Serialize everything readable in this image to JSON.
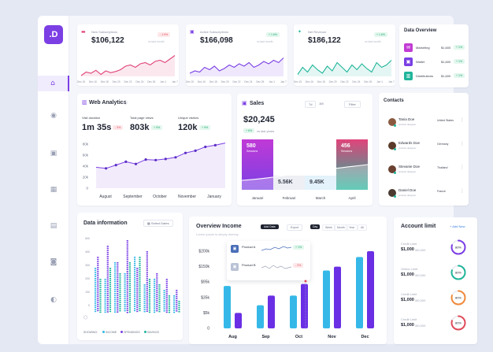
{
  "app": {
    "logo": ".D",
    "nav": [
      "home-icon",
      "play-icon",
      "image-icon",
      "grid-icon",
      "store-icon",
      "user-icon",
      "contrast-icon"
    ]
  },
  "stats": [
    {
      "title": "New Subscriptions",
      "value": "$106,122",
      "badge": "- 1.9%",
      "trend": "down",
      "note": "vs last month",
      "color": "#e0447a",
      "ticks": [
        "Dec 15",
        "Dec 16",
        "Dec 18",
        "Dec 20",
        "Dec 22",
        "Dec 24",
        "Dec 26",
        "Jan 1",
        "Jan 7"
      ],
      "series": [
        44,
        38,
        40,
        35,
        42,
        36,
        39,
        37,
        34,
        28,
        26,
        30,
        24,
        22,
        26,
        20,
        18,
        22,
        16,
        10
      ]
    },
    {
      "title": "Active Subscriptions",
      "value": "$166,098",
      "badge": "+ 1.6%",
      "trend": "up",
      "note": "vs last month",
      "color": "#7b3fe4",
      "ticks": [
        "Dec 15",
        "Dec 16",
        "Dec 18",
        "Dec 20",
        "Dec 22",
        "Dec 24",
        "Dec 26",
        "Jan 1",
        "Jan 7"
      ],
      "series": [
        40,
        36,
        38,
        30,
        34,
        28,
        36,
        32,
        26,
        30,
        24,
        28,
        22,
        30,
        26,
        20,
        24,
        18,
        22,
        14
      ]
    },
    {
      "title": "Net Revenue",
      "value": "$186,122",
      "badge": "+ 1.6%",
      "trend": "up",
      "note": "vs last month",
      "color": "#1fb59a",
      "ticks": [
        "Dec 15",
        "Dec 16",
        "Dec 18",
        "Dec 20",
        "Dec 22",
        "Dec 24",
        "Dec 26",
        "Jan 1",
        "Jan 7"
      ],
      "series": [
        42,
        30,
        38,
        26,
        34,
        40,
        28,
        36,
        22,
        30,
        38,
        26,
        34,
        24,
        32,
        38,
        22,
        30,
        26,
        18
      ]
    }
  ],
  "overview": {
    "title": "Data Overview",
    "items": [
      {
        "label": "Marketing",
        "value": "$1,600",
        "badge": "+ 1%",
        "color": "#c23bd4",
        "icon": "megaphone-icon"
      },
      {
        "label": "Wallet",
        "value": "$1,600",
        "badge": "+ 1%",
        "color": "#7b3fe4",
        "icon": "wallet-icon"
      },
      {
        "label": "Distributions",
        "value": "$1,600",
        "badge": "+ 1%",
        "color": "#1fb59a",
        "icon": "chart-icon"
      }
    ]
  },
  "web": {
    "title": "Web Analytics",
    "metrics": [
      {
        "label": "Visit duration",
        "value": "1m 35s",
        "badge": "- 3%",
        "trend": "down"
      },
      {
        "label": "Total page views",
        "value": "803k",
        "badge": "+ 9%",
        "trend": "up"
      },
      {
        "label": "Unique visitors",
        "value": "120k",
        "badge": "+ 9%",
        "trend": "up"
      }
    ],
    "chart_data": {
      "type": "area",
      "yticks": [
        "80k",
        "60k",
        "40k",
        "20k",
        "0"
      ],
      "xticks": [
        "August",
        "September",
        "October",
        "November",
        "January"
      ],
      "ylim": [
        0,
        80
      ],
      "values": [
        38,
        36,
        42,
        48,
        44,
        52,
        51,
        53,
        56,
        64,
        68,
        75,
        78,
        82
      ]
    }
  },
  "sales": {
    "title": "Sales",
    "value": "$20,245",
    "badge": "+ 6%",
    "note": "vs last years",
    "tabs": [
      "7d",
      "1M"
    ],
    "filter": "Filter",
    "chart_data": {
      "type": "bar",
      "categories": [
        "Januari",
        "Februari",
        "March",
        "April"
      ],
      "values": [
        "580",
        "5.56K",
        "9.45K",
        "456"
      ],
      "captions": [
        "Sessions",
        "",
        "",
        "Sessions"
      ]
    }
  },
  "contacts": {
    "title": "Contacts",
    "items": [
      {
        "name": "Tania Doe",
        "role": "product designer",
        "country": "United States",
        "color": "#8a5a40"
      },
      {
        "name": "Edwards Doe",
        "role": "product designer",
        "country": "Germany",
        "color": "#5a3a2a"
      },
      {
        "name": "Stevanie Doe",
        "role": "product designer",
        "country": "Thailand",
        "color": "#6a4030"
      },
      {
        "name": "Daniel Doe",
        "role": "product designer",
        "country": "France",
        "color": "#4a3a30"
      }
    ]
  },
  "datainfo": {
    "title": "Data information",
    "button": "Select Dates",
    "yticks": [
      "500",
      "400",
      "300",
      "200",
      "100",
      "0"
    ],
    "showing": "SHOWING:",
    "legend": [
      {
        "label": "INCOME",
        "color": "#35b8e8"
      },
      {
        "label": "SPENDINGS",
        "color": "#7b3fe4"
      },
      {
        "label": "SAVINGS",
        "color": "#1fb59a"
      }
    ],
    "chart_data": {
      "type": "bar",
      "series": [
        {
          "name": "INCOME",
          "values": [
            80,
            60,
            90,
            70,
            100,
            50,
            60,
            40,
            30
          ]
        },
        {
          "name": "SPENDINGS",
          "values": [
            100,
            120,
            90,
            130,
            80,
            110,
            70,
            60,
            40
          ]
        },
        {
          "name": "SAVINGS",
          "values": [
            60,
            80,
            70,
            90,
            100,
            60,
            50,
            30,
            20
          ]
        }
      ]
    }
  },
  "income": {
    "title": "Overview Income",
    "subtitle": "Lorem ipsum is simply dummy",
    "actions": [
      "Add Data",
      "Export"
    ],
    "periods": [
      "Day",
      "Week",
      "Month",
      "Year",
      "All"
    ],
    "products": [
      {
        "name": "Product A",
        "badge": "+ 1%"
      },
      {
        "name": "Product B",
        "badge": "- 2%"
      }
    ],
    "chart_data": {
      "type": "bar",
      "categories": [
        "Aug",
        "Sep",
        "Oct",
        "Nov",
        "Dec"
      ],
      "yticks": [
        "$200k",
        "$150k",
        "$95k",
        "$35k",
        "$5k",
        "0"
      ],
      "ylim": [
        0,
        200
      ],
      "series": [
        {
          "values": [
            110,
            60,
            85,
            150,
            185
          ]
        },
        {
          "values": [
            40,
            85,
            115,
            160,
            200
          ]
        }
      ]
    }
  },
  "account": {
    "title": "Account limit",
    "add": "+ Add New",
    "items": [
      {
        "label": "Credit Limit",
        "value": "$1,000",
        "total": "/60,000",
        "pct": "80%",
        "color": "#7b3fe4",
        "frac": 0.8
      },
      {
        "label": "Online Limit",
        "value": "$1,000",
        "total": "/60,000",
        "pct": "80%",
        "color": "#1fb59a",
        "frac": 0.8
      },
      {
        "label": "Credit Limit",
        "value": "$1,000",
        "total": "/60,000",
        "pct": "80%",
        "color": "#f08a3c",
        "frac": 0.8
      },
      {
        "label": "Credit Limit",
        "value": "$1,000",
        "total": "/60,000",
        "pct": "80%",
        "color": "#e04b5a",
        "frac": 0.8
      }
    ]
  }
}
